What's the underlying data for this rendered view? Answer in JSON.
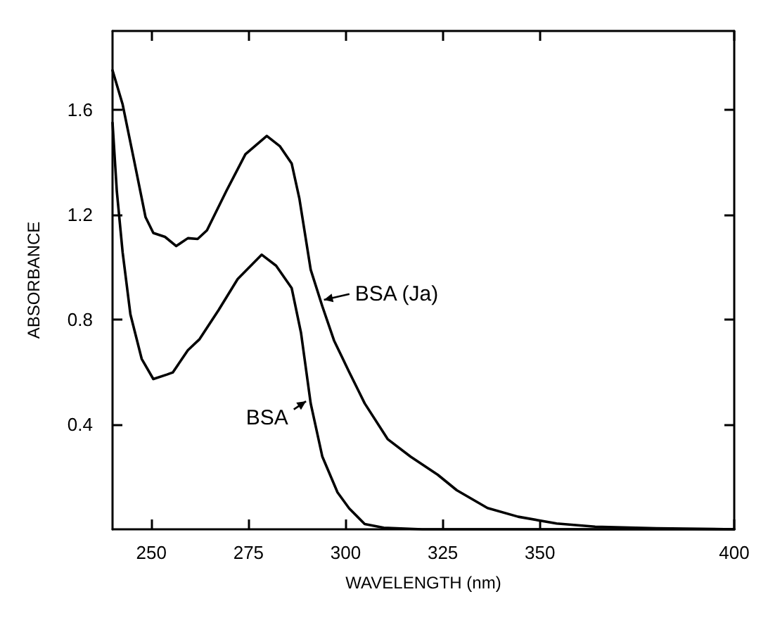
{
  "chart_data": {
    "type": "line",
    "xlabel": "WAVELENGTH (nm)",
    "ylabel": "ABSORBANCE",
    "xlim": [
      240,
      400
    ],
    "ylim": [
      0,
      1.9
    ],
    "xticks": [
      250,
      275,
      300,
      325,
      350,
      400
    ],
    "yticks": [
      0.4,
      0.8,
      1.2,
      1.6
    ],
    "marker": "none",
    "line_style": "solid",
    "series": [
      {
        "color": "#000000",
        "x": [
          240,
          242.6,
          245.5,
          248.5,
          250.5,
          253.5,
          256.4,
          259.4,
          261.9,
          264.3,
          269.3,
          274.2,
          279.7,
          283.1,
          286.1,
          288.1,
          291,
          294,
          297,
          300.9,
          304.9,
          310.8,
          316.7,
          323.7,
          328.6,
          336.5,
          344.4,
          354.3,
          364.2,
          380,
          400
        ],
        "values": [
          1.75,
          1.62,
          1.41,
          1.19,
          1.13,
          1.115,
          1.08,
          1.11,
          1.107,
          1.14,
          1.29,
          1.43,
          1.5,
          1.46,
          1.395,
          1.26,
          0.99,
          0.85,
          0.72,
          0.6,
          0.48,
          0.344,
          0.277,
          0.208,
          0.149,
          0.081,
          0.048,
          0.022,
          0.01,
          0.004,
          0
        ]
      },
      {
        "color": "#000000",
        "x": [
          240,
          241.1,
          242.6,
          244.6,
          247.5,
          250.5,
          254,
          255.5,
          259.4,
          262.4,
          267.3,
          272.2,
          278.4,
          282.1,
          286.1,
          288.5,
          291,
          294,
          297.9,
          300.9,
          304.9,
          309.8,
          319.7,
          340,
          400
        ],
        "values": [
          1.55,
          1.29,
          1.056,
          0.82,
          0.65,
          0.573,
          0.59,
          0.598,
          0.683,
          0.725,
          0.836,
          0.954,
          1.047,
          1.005,
          0.92,
          0.75,
          0.48,
          0.277,
          0.141,
          0.08,
          0.02,
          0.006,
          0,
          0,
          0
        ]
      }
    ],
    "annotations": [
      {
        "text": "BSA (Ja)",
        "x": 293,
        "y": 0.87
      },
      {
        "text": "BSA",
        "x": 291,
        "y": 0.5
      }
    ]
  }
}
